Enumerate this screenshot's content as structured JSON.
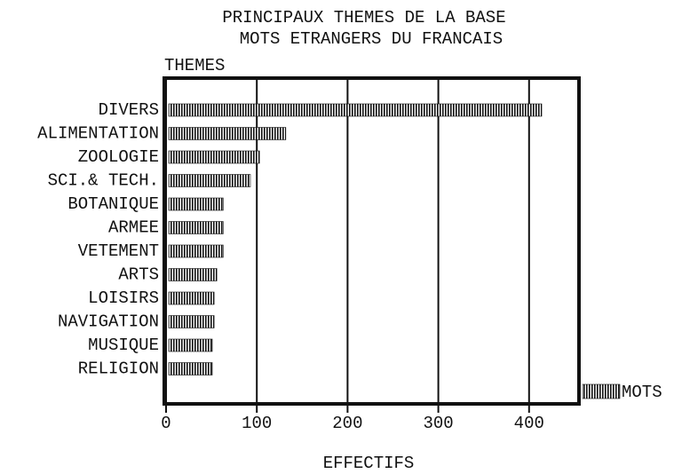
{
  "chart_data": {
    "type": "barh",
    "title": "PRINCIPAUX THEMES DE LA BASE",
    "subtitle": "MOTS ETRANGERS DU FRANCAIS",
    "y_label": "THEMES",
    "x_label": "EFFECTIFS",
    "categories": [
      "DIVERS",
      "ALIMENTATION",
      "ZOOLOGIE",
      "SCI.& TECH.",
      "BOTANIQUE",
      "ARMEE",
      "VETEMENT",
      "ARTS",
      "LOISIRS",
      "NAVIGATION",
      "MUSIQUE",
      "RELIGION"
    ],
    "series": [
      {
        "name": "MOTS",
        "color": "#111111",
        "values": [
          411,
          129,
          100,
          90,
          60,
          60,
          60,
          53,
          50,
          50,
          48,
          48
        ]
      }
    ],
    "xlim": [
      0,
      455
    ],
    "xticks": [
      0,
      100,
      200,
      300,
      400
    ],
    "grid": true,
    "legend": "bottom-right"
  }
}
